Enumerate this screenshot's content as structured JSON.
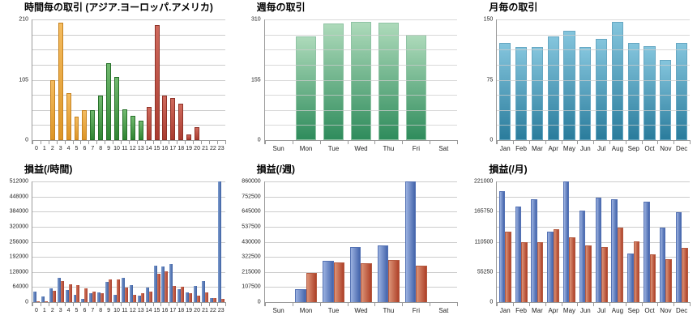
{
  "chart_data": [
    {
      "type": "bar",
      "title": "時間毎の取引 (アジア.ヨーロッパ.アメリカ)",
      "categories": [
        "0",
        "1",
        "2",
        "3",
        "4",
        "5",
        "6",
        "7",
        "8",
        "9",
        "10",
        "11",
        "12",
        "13",
        "14",
        "15",
        "16",
        "17",
        "18",
        "19",
        "20",
        "21",
        "22",
        "23"
      ],
      "ymax": 210,
      "yticks": [
        {
          "value": 0,
          "label": "0"
        },
        {
          "value": 105,
          "label": "105"
        },
        {
          "value": 210,
          "label": "210"
        }
      ],
      "grid_intervals": 8,
      "grid_over_bars": false,
      "bar_pct": 60,
      "xlabel_size": 7,
      "legend_position": "none",
      "series": [
        {
          "name": "trades-per-hour",
          "values": [
            0,
            0,
            105,
            205,
            82,
            41,
            52,
            52,
            78,
            134,
            110,
            53,
            43,
            34,
            58,
            200,
            78,
            73,
            64,
            10,
            23,
            0,
            0,
            0
          ],
          "classes": [
            "orange",
            "orange",
            "orange",
            "orange",
            "orange",
            "orange",
            "orange",
            "green",
            "green",
            "green",
            "green",
            "green",
            "green",
            "green",
            "red",
            "red",
            "red",
            "red",
            "red",
            "red",
            "red",
            "red",
            "red",
            "red"
          ]
        }
      ],
      "region_colors": {
        "asia": "#dd9526",
        "europe": "#2f8532",
        "america": "#aa3c30"
      }
    },
    {
      "type": "bar",
      "title": "週毎の取引",
      "categories": [
        "Sun",
        "Mon",
        "Tue",
        "Wed",
        "Thu",
        "Fri",
        "Sat"
      ],
      "ymax": 310,
      "yticks": [
        {
          "value": 0,
          "label": "0"
        },
        {
          "value": 155,
          "label": "155"
        },
        {
          "value": 310,
          "label": "310"
        }
      ],
      "grid_intervals": 8,
      "grid_over_bars": true,
      "bar_pct": 75,
      "xlabel_size": 8,
      "legend_position": "none",
      "series": [
        {
          "name": "trades-per-weekday",
          "class": "green-grad",
          "values": [
            0,
            267,
            300,
            303,
            302,
            270,
            0
          ]
        }
      ],
      "accent_color": "#2f8c5c"
    },
    {
      "type": "bar",
      "title": "月毎の取引",
      "categories": [
        "Jan",
        "Feb",
        "Mar",
        "Apr",
        "May",
        "Jun",
        "Jul",
        "Aug",
        "Sep",
        "Oct",
        "Nov",
        "Dec"
      ],
      "ymax": 150,
      "yticks": [
        {
          "value": 0,
          "label": "0"
        },
        {
          "value": 75,
          "label": "75"
        },
        {
          "value": 150,
          "label": "150"
        }
      ],
      "grid_intervals": 8,
      "grid_over_bars": true,
      "bar_pct": 72,
      "xlabel_size": 8,
      "legend_position": "none",
      "series": [
        {
          "name": "trades-per-month",
          "class": "blue-grad",
          "values": [
            121,
            116,
            116,
            129,
            136,
            116,
            126,
            147,
            121,
            117,
            100,
            121
          ]
        }
      ],
      "accent_color": "#2a7c9c"
    },
    {
      "type": "bar",
      "title": "損益(/時間)",
      "categories": [
        "0",
        "1",
        "2",
        "3",
        "4",
        "5",
        "6",
        "7",
        "8",
        "9",
        "10",
        "11",
        "12",
        "13",
        "14",
        "15",
        "16",
        "17",
        "18",
        "19",
        "20",
        "21",
        "22",
        "23"
      ],
      "ymax": 512000,
      "yticks": [
        {
          "value": 0,
          "label": "0"
        },
        {
          "value": 64000,
          "label": "64000"
        },
        {
          "value": 128000,
          "label": "128000"
        },
        {
          "value": 192000,
          "label": "192000"
        },
        {
          "value": 256000,
          "label": "256000"
        },
        {
          "value": 320000,
          "label": "320000"
        },
        {
          "value": 384000,
          "label": "384000"
        },
        {
          "value": 448000,
          "label": "448000"
        },
        {
          "value": 512000,
          "label": "512000"
        }
      ],
      "grid_intervals": 8,
      "grid_over_bars": false,
      "bar_pct": 40,
      "xlabel_size": 7,
      "legend_position": "none",
      "series": [
        {
          "name": "pnl-hour-series1",
          "class": "blue-flat",
          "values": [
            46000,
            23000,
            57000,
            104000,
            52000,
            30000,
            13000,
            39000,
            42000,
            86000,
            32000,
            104000,
            72000,
            28000,
            61000,
            154000,
            150000,
            160000,
            56000,
            41000,
            68000,
            90000,
            17000,
            512000
          ]
        },
        {
          "name": "pnl-hour-series2",
          "class": "red-flat",
          "values": [
            3000,
            5000,
            49000,
            91000,
            77000,
            72000,
            59000,
            45000,
            39000,
            95000,
            96000,
            62000,
            32000,
            39000,
            45000,
            119000,
            130000,
            70000,
            64000,
            37000,
            26000,
            41000,
            17000,
            13000
          ]
        }
      ],
      "series_colors": {
        "series1": "#3e61a3",
        "series2": "#a93c2b"
      }
    },
    {
      "type": "bar",
      "title": "損益(/週)",
      "categories": [
        "Sun",
        "Mon",
        "Tue",
        "Wed",
        "Thu",
        "Fri",
        "Sat"
      ],
      "ymax": 860000,
      "yticks": [
        {
          "value": 0,
          "label": "0"
        },
        {
          "value": 107500,
          "label": "107500"
        },
        {
          "value": 215000,
          "label": "215000"
        },
        {
          "value": 322500,
          "label": "322500"
        },
        {
          "value": 430000,
          "label": "430000"
        },
        {
          "value": 537500,
          "label": "537500"
        },
        {
          "value": 645000,
          "label": "645000"
        },
        {
          "value": 752500,
          "label": "752500"
        },
        {
          "value": 860000,
          "label": "860000"
        }
      ],
      "grid_intervals": 8,
      "grid_over_bars": false,
      "bar_pct": 40,
      "xlabel_size": 8,
      "legend_position": "none",
      "series": [
        {
          "name": "pnl-week-series1",
          "class": "blue-soft",
          "values": [
            0,
            93000,
            297000,
            390000,
            405000,
            860000,
            0
          ]
        },
        {
          "name": "pnl-week-series2",
          "class": "red-soft",
          "values": [
            0,
            210000,
            285000,
            278000,
            303000,
            258000,
            0
          ]
        }
      ],
      "series_colors": {
        "series1": "#4465ac",
        "series2": "#ae4129"
      }
    },
    {
      "type": "bar",
      "title": "損益(/月)",
      "categories": [
        "Jan",
        "Feb",
        "Mar",
        "Apr",
        "May",
        "Jun",
        "Jul",
        "Aug",
        "Sep",
        "Oct",
        "Nov",
        "Dec"
      ],
      "ymax": 221000,
      "yticks": [
        {
          "value": 0,
          "label": "0"
        },
        {
          "value": 55250,
          "label": "55250"
        },
        {
          "value": 110500,
          "label": "110500"
        },
        {
          "value": 165750,
          "label": "165750"
        },
        {
          "value": 221000,
          "label": "221000"
        }
      ],
      "grid_intervals": 8,
      "grid_over_bars": false,
      "bar_pct": 38,
      "xlabel_size": 8,
      "legend_position": "none",
      "series": [
        {
          "name": "pnl-month-series1",
          "class": "blue-soft",
          "values": [
            203000,
            175000,
            189000,
            129000,
            221000,
            168000,
            191000,
            189000,
            89000,
            184000,
            137000,
            165000
          ]
        },
        {
          "name": "pnl-month-series2",
          "class": "red-soft",
          "values": [
            129000,
            110000,
            110000,
            134000,
            119000,
            104000,
            101000,
            137000,
            111000,
            88000,
            79000,
            100000
          ]
        }
      ],
      "series_colors": {
        "series1": "#4465ac",
        "series2": "#ae4129"
      }
    }
  ]
}
